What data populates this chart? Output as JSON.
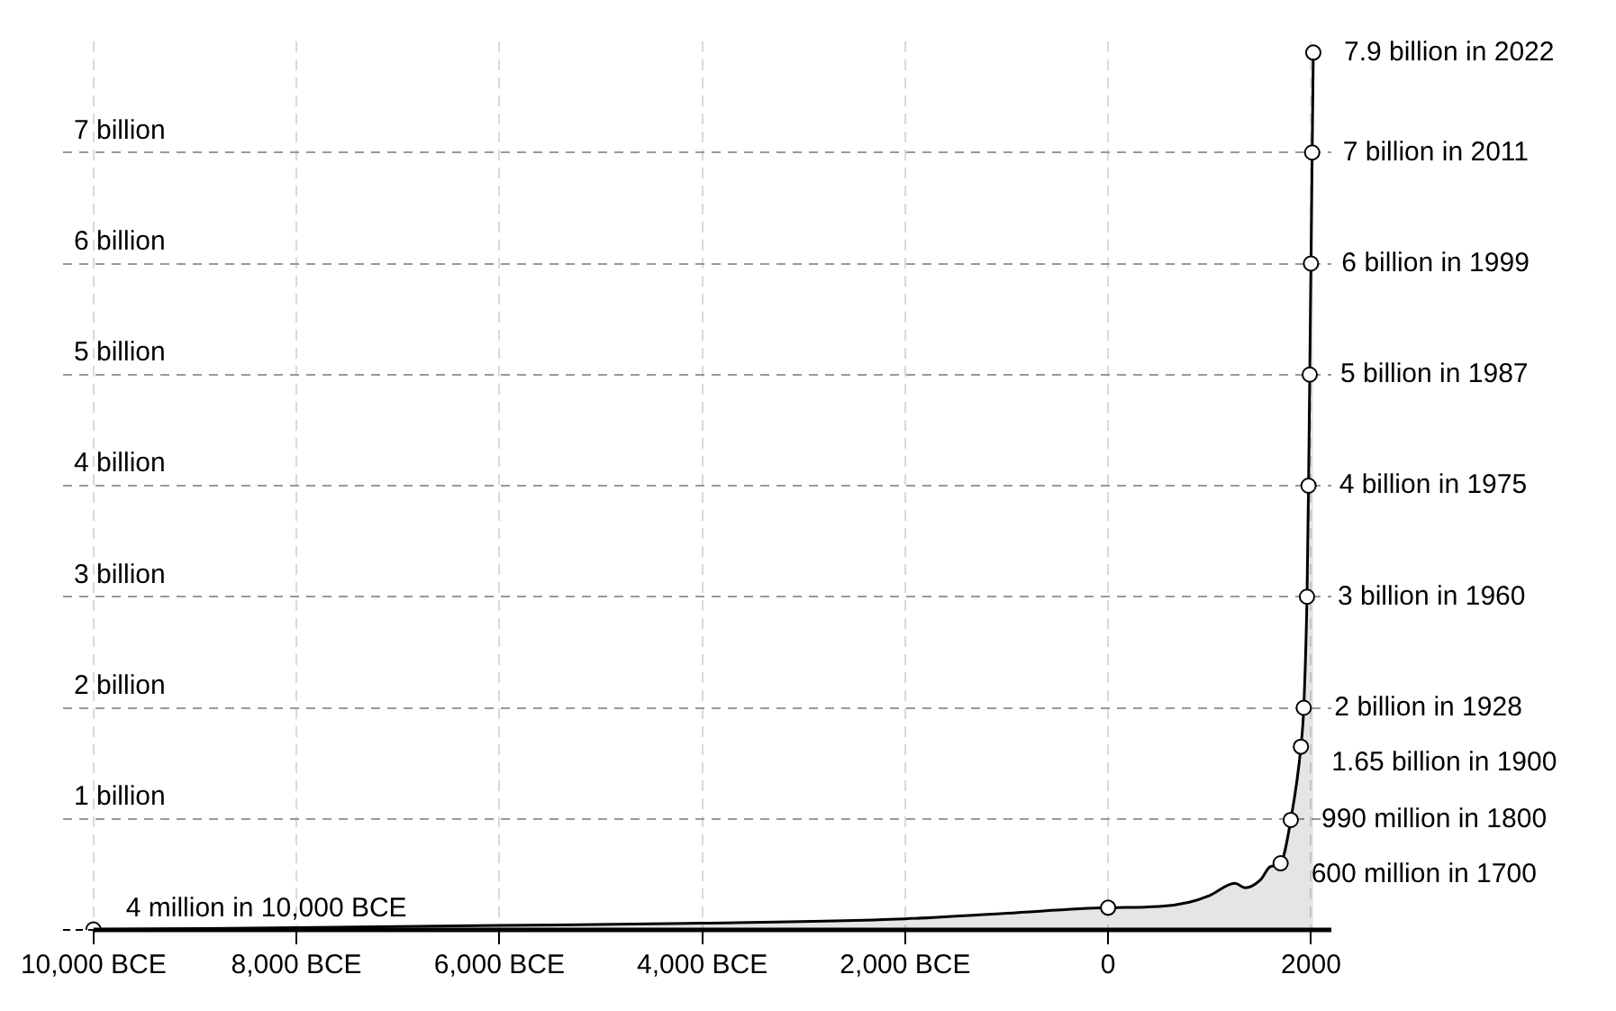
{
  "chart_data": {
    "type": "area",
    "xlim": [
      -10300,
      2200
    ],
    "ylim": [
      0,
      8
    ],
    "xticks": [
      {
        "value": -10000,
        "label": "10,000 BCE"
      },
      {
        "value": -8000,
        "label": "8,000 BCE"
      },
      {
        "value": -6000,
        "label": "6,000 BCE"
      },
      {
        "value": -4000,
        "label": "4,000 BCE"
      },
      {
        "value": -2000,
        "label": "2,000 BCE"
      },
      0,
      2000
    ],
    "yticks": [
      {
        "value": 1,
        "label": "1 billion"
      },
      {
        "value": 2,
        "label": "2 billion"
      },
      {
        "value": 3,
        "label": "3 billion"
      },
      {
        "value": 4,
        "label": "4 billion"
      },
      {
        "value": 5,
        "label": "5 billion"
      },
      {
        "value": 6,
        "label": "6 billion"
      },
      {
        "value": 7,
        "label": "7 billion"
      }
    ],
    "grid": true,
    "series": [
      {
        "color": "#000000",
        "marker": "none",
        "x": [
          -10000,
          -8000,
          -6000,
          -4000,
          -2000,
          -1000,
          0,
          500,
          800,
          1000,
          1250,
          1350,
          1500,
          1600,
          1700,
          1800,
          1900,
          1928,
          1960,
          1975,
          1987,
          1999,
          2011,
          2022
        ],
        "values": [
          0.004,
          0.02,
          0.04,
          0.06,
          0.1,
          0.15,
          0.2,
          0.21,
          0.25,
          0.31,
          0.42,
          0.38,
          0.45,
          0.57,
          0.6,
          0.99,
          1.65,
          2,
          3,
          4,
          5,
          6,
          7,
          7.9
        ]
      },
      {
        "type": "scatter",
        "color": "#000000",
        "marker": "circle",
        "x": [
          -10000,
          0,
          1700,
          1800,
          1900,
          1928,
          1960,
          1975,
          1987,
          1999,
          2011,
          2022
        ],
        "values": [
          0.004,
          0.2,
          0.6,
          0.99,
          1.65,
          2,
          3,
          4,
          5,
          6,
          7,
          7.9
        ]
      }
    ],
    "annotations": [
      {
        "text": "4 million in 10,000 BCE",
        "x": -10000,
        "y": 0.004
      },
      {
        "text": "600 million in 1700",
        "x": 1700,
        "y": 0.5
      },
      {
        "text": "990 million in 1800",
        "x": 1800,
        "y": 0.99
      },
      {
        "text": "1.65 billion in 1900",
        "x": 1900,
        "y": 1.5
      },
      {
        "text": "2 billion in 1928",
        "x": 1928,
        "y": 2
      },
      {
        "text": "3 billion in 1960",
        "x": 1960,
        "y": 3
      },
      {
        "text": "4 billion in 1975",
        "x": 1975,
        "y": 4
      },
      {
        "text": "5 billion in 1987",
        "x": 1987,
        "y": 5
      },
      {
        "text": "6 billion in 1999",
        "x": 1999,
        "y": 6
      },
      {
        "text": "7 billion in 2011",
        "x": 2011,
        "y": 7
      },
      {
        "text": "7.9 billion in 2022",
        "x": 2022,
        "y": 7.9
      }
    ]
  }
}
